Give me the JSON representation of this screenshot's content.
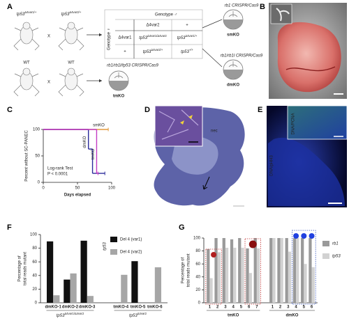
{
  "panel_labels": [
    "A",
    "B",
    "C",
    "D",
    "E",
    "F",
    "G"
  ],
  "panel_a": {
    "cross1": {
      "left": {
        "base": "tp53",
        "sup": "Δ4var1/+"
      },
      "x": "X",
      "right": {
        "base": "tp53",
        "sup": "Δ4var2/+"
      }
    },
    "genotype_female": "Genotype ♀",
    "genotype_male": "Genotype ♂",
    "col_headers": [
      "Δ4var2",
      "+"
    ],
    "row_headers": [
      "Δ4var1",
      "+"
    ],
    "cells": [
      [
        {
          "base": "tp53",
          "sup": "Δ4var1/Δ4var2"
        },
        {
          "base": "tp53",
          "sup": "Δ4var1/+"
        }
      ],
      [
        {
          "base": "tp53",
          "sup": "Δ4var2/+"
        },
        {
          "base": "tp53",
          "sup": "+/+"
        }
      ]
    ],
    "sm_reagent": "rb1 CRISPR/Cas9",
    "sm_label": "smKO",
    "dm_reagent": "rb1/rb1l CRISPR/Cas9",
    "dm_label": "dmKO",
    "cross2": {
      "left": "WT",
      "x": "X",
      "right": "WT"
    },
    "tm_reagent": "rb1/rb1l/tp53 CRISPR/Cas9",
    "tm_label": "tmKO"
  },
  "panel_d": {
    "label": "nec"
  },
  "panel_e": {
    "labels": [
      "DNA/pHH3",
      "DNA/PCNA"
    ]
  },
  "chart_data": [
    {
      "type": "step",
      "ylabel": "Percent without SC-PANEC",
      "xlabel": "Days elapsed",
      "xlim": [
        0,
        100
      ],
      "xticks": [
        0,
        50,
        100
      ],
      "ylim": [
        0,
        100
      ],
      "yticks": [
        0,
        50,
        100
      ],
      "annotation": [
        "Log-rank Test",
        "P < 0.0001"
      ],
      "series": [
        {
          "name": "smKO",
          "color": "#e39a3b",
          "x": [
            0,
            95
          ],
          "values": [
            100,
            100
          ]
        },
        {
          "name": "dmKO",
          "color": "#2b2b9b",
          "x": [
            0,
            66,
            72,
            90
          ],
          "values": [
            100,
            63,
            17,
            17
          ]
        },
        {
          "name": "tmKO",
          "color": "#c33cc3",
          "x": [
            0,
            78,
            80
          ],
          "values": [
            100,
            17,
            17
          ]
        }
      ]
    },
    {
      "type": "bar",
      "ylabel": [
        "Percentage of",
        "total reads mutant"
      ],
      "ylim": [
        0,
        100
      ],
      "yticks": [
        0,
        20,
        40,
        60,
        80,
        100
      ],
      "categories": [
        "dmKO-1",
        "dmKO-2",
        "dmKO-3",
        "tmKO-4",
        "tmKO-5",
        "tmKO-6"
      ],
      "groups": [
        {
          "label": {
            "base": "tp53",
            "sup": "Δ4var1/Δ4var2"
          },
          "size": 3
        },
        {
          "label": {
            "base": "tp53",
            "sup": "Δ4var2"
          },
          "size": 3
        }
      ],
      "legend_title": "tp53",
      "series": [
        {
          "name": "Del 4 (var1)",
          "color": "#111111",
          "values": [
            90,
            34,
            91,
            null,
            61,
            null
          ]
        },
        {
          "name": "Del 4 (var2)",
          "color": "#a6a6a6",
          "values": [
            11,
            43,
            10,
            41,
            null,
            52
          ]
        }
      ]
    },
    {
      "type": "bar",
      "ylabel": [
        "Percentage of",
        "total reads mutant"
      ],
      "ylim": [
        0,
        100
      ],
      "yticks": [
        0,
        20,
        40,
        60,
        80,
        100
      ],
      "categories": [
        "1",
        "2",
        "3",
        "4",
        "5",
        "6",
        "7",
        "1",
        "2",
        "3",
        "4",
        "5",
        "6"
      ],
      "groups": [
        {
          "label": "tmKO",
          "color": "#a030c0",
          "size": 7
        },
        {
          "label": "dmKO",
          "color": "#3050c0",
          "size": 6
        }
      ],
      "series": [
        {
          "name": "rb1",
          "color": "#9a9a9a",
          "values": [
            83,
            100,
            100,
            98,
            100,
            84,
            100,
            100,
            100,
            100,
            100,
            100,
            100
          ]
        },
        {
          "name": "tp53",
          "color": "#d2d2d2",
          "values": [
            38,
            78,
            85,
            85,
            85,
            46,
            84,
            100,
            100,
            79,
            100,
            60,
            55
          ]
        }
      ]
    }
  ]
}
